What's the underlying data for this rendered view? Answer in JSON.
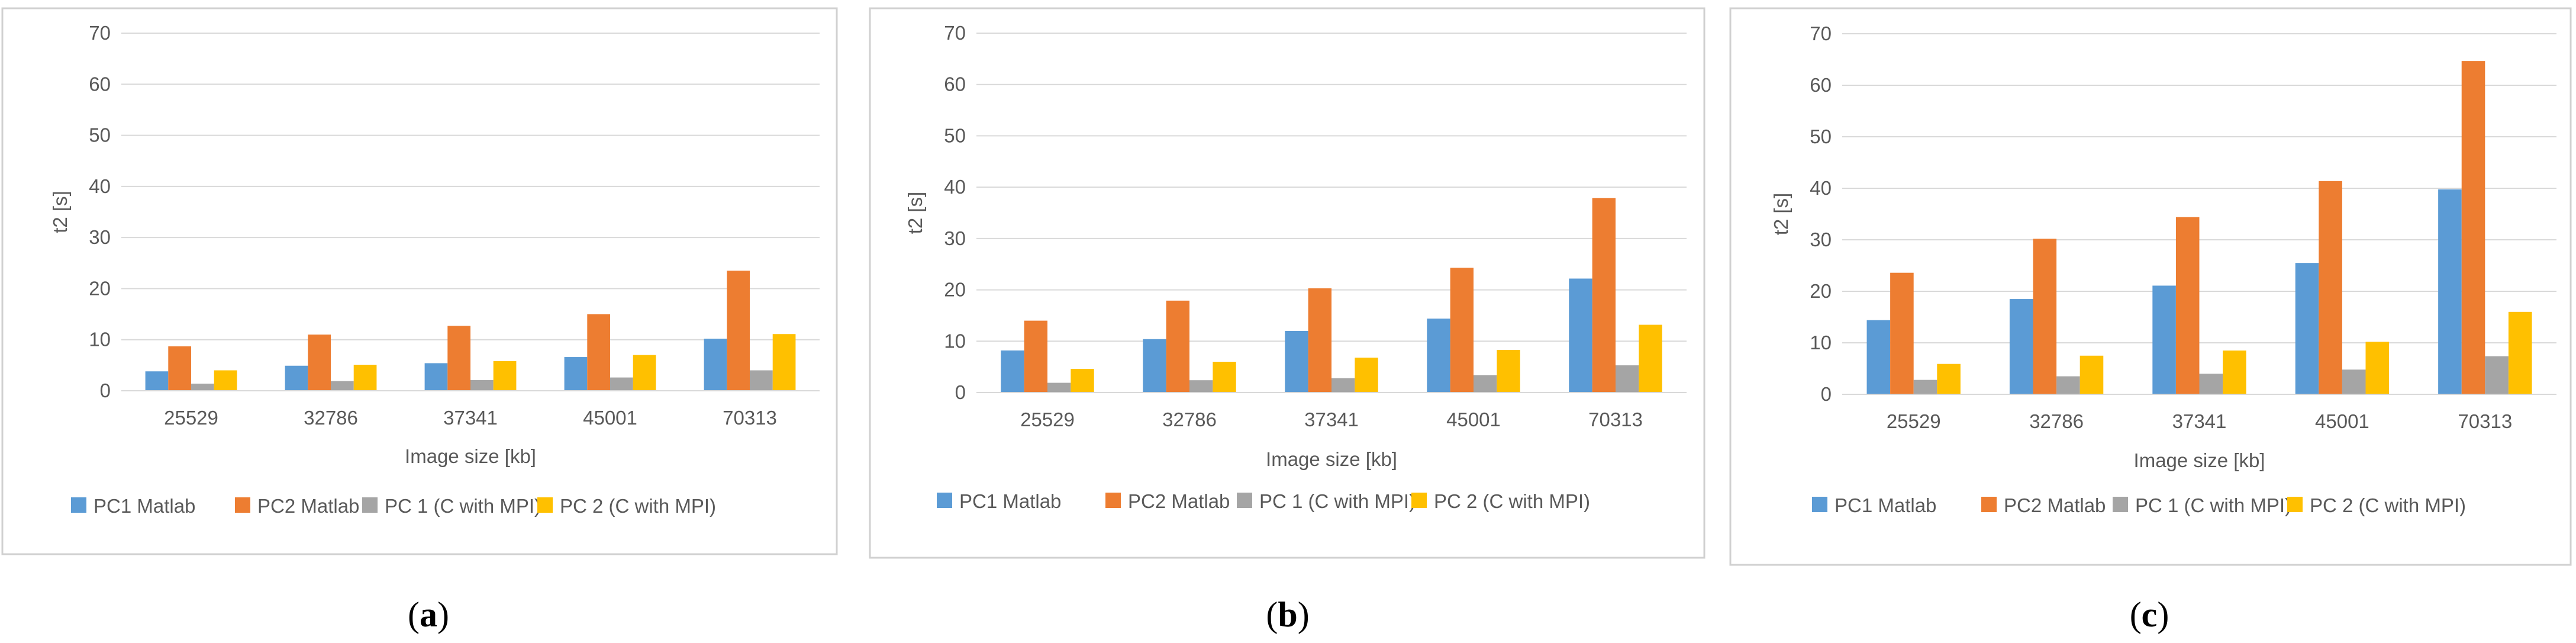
{
  "colors": {
    "series": [
      "#5B9BD5",
      "#ED7D31",
      "#A5A5A5",
      "#FFC000"
    ],
    "grid": "#D9D9D9",
    "frame": "#D0D0D0",
    "text": "#595959"
  },
  "chart_data": [
    {
      "type": "bar",
      "panel": "a",
      "caption_open": "(",
      "caption_letter": "a",
      "caption_close": ")",
      "xlabel": "Image size [kb]",
      "ylabel": "t2 [s]",
      "ylim": [
        0,
        70
      ],
      "yticks": [
        "0",
        "10",
        "20",
        "30",
        "40",
        "50",
        "60",
        "70"
      ],
      "grid": true,
      "legend": "bottom",
      "categories": [
        "25529",
        "32786",
        "37341",
        "45001",
        "70313"
      ],
      "series": [
        {
          "name": "PC1 Matlab",
          "values": [
            3.8,
            4.9,
            5.4,
            6.6,
            10.2
          ]
        },
        {
          "name": "PC2 Matlab",
          "values": [
            8.7,
            11.0,
            12.7,
            15.0,
            23.5
          ]
        },
        {
          "name": "PC 1 (C with MPI)",
          "values": [
            1.4,
            1.9,
            2.1,
            2.6,
            4.0
          ]
        },
        {
          "name": "PC 2 (C with MPI)",
          "values": [
            4.0,
            5.1,
            5.8,
            7.0,
            11.1
          ]
        }
      ]
    },
    {
      "type": "bar",
      "panel": "b",
      "caption_open": "(",
      "caption_letter": "b",
      "caption_close": ")",
      "xlabel": "Image size [kb]",
      "ylabel": "t2 [s]",
      "ylim": [
        0,
        70
      ],
      "yticks": [
        "0",
        "10",
        "20",
        "30",
        "40",
        "50",
        "60",
        "70"
      ],
      "grid": true,
      "legend": "bottom",
      "categories": [
        "25529",
        "32786",
        "37341",
        "45001",
        "70313"
      ],
      "series": [
        {
          "name": "PC1 Matlab",
          "values": [
            8.2,
            10.4,
            12.0,
            14.4,
            22.2
          ]
        },
        {
          "name": "PC2 Matlab",
          "values": [
            14.0,
            17.9,
            20.3,
            24.3,
            37.9
          ]
        },
        {
          "name": "PC 1 (C with MPI)",
          "values": [
            1.9,
            2.4,
            2.8,
            3.4,
            5.3
          ]
        },
        {
          "name": "PC 2 (C with MPI)",
          "values": [
            4.6,
            6.0,
            6.8,
            8.3,
            13.2
          ]
        }
      ]
    },
    {
      "type": "bar",
      "panel": "c",
      "caption_open": "(",
      "caption_letter": "c",
      "caption_close": ")",
      "xlabel": "Image size [kb]",
      "ylabel": "t2 [s]",
      "ylim": [
        0,
        70
      ],
      "yticks": [
        "0",
        "10",
        "20",
        "30",
        "40",
        "50",
        "60",
        "70"
      ],
      "grid": true,
      "legend": "bottom",
      "categories": [
        "25529",
        "32786",
        "37341",
        "45001",
        "70313"
      ],
      "series": [
        {
          "name": "PC1 Matlab",
          "values": [
            14.4,
            18.5,
            21.1,
            25.5,
            39.8
          ]
        },
        {
          "name": "PC2 Matlab",
          "values": [
            23.6,
            30.2,
            34.4,
            41.4,
            64.7
          ]
        },
        {
          "name": "PC 1 (C with MPI)",
          "values": [
            2.8,
            3.5,
            4.0,
            4.8,
            7.4
          ]
        },
        {
          "name": "PC 2 (C with MPI)",
          "values": [
            5.9,
            7.5,
            8.5,
            10.2,
            16.0
          ]
        }
      ]
    }
  ]
}
